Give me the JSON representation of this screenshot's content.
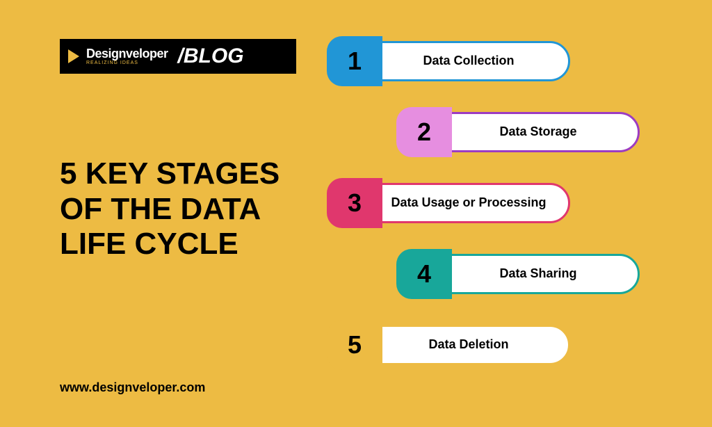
{
  "logo": {
    "brand_main": "Designveloper",
    "brand_sub": "REALIZING IDEAS",
    "blog_text": "/BLOG"
  },
  "title": "5 KEY STAGES OF THE DATA LIFE CYCLE",
  "website": "www.designveloper.com",
  "background_color": "#edbb43",
  "stage_layout": {
    "pill_width": 350,
    "pill_height": 72,
    "row_gap": 102,
    "offsets_x": [
      0,
      100,
      0,
      100,
      0
    ]
  },
  "stages": [
    {
      "num": "1",
      "label": "Data Collection",
      "tab_color": "#2196d6",
      "border_color": "#2196d6"
    },
    {
      "num": "2",
      "label": "Data Storage",
      "tab_color": "#e68ee0",
      "border_color": "#9c3cc2"
    },
    {
      "num": "3",
      "label": "Data Usage or Processing",
      "tab_color": "#e0376d",
      "border_color": "#e0376d"
    },
    {
      "num": "4",
      "label": "Data Sharing",
      "tab_color": "#18a79a",
      "border_color": "#18a79a"
    },
    {
      "num": "5",
      "label": "Data Deletion",
      "tab_color": "#edbb43",
      "border_color": "#edbb43"
    }
  ]
}
